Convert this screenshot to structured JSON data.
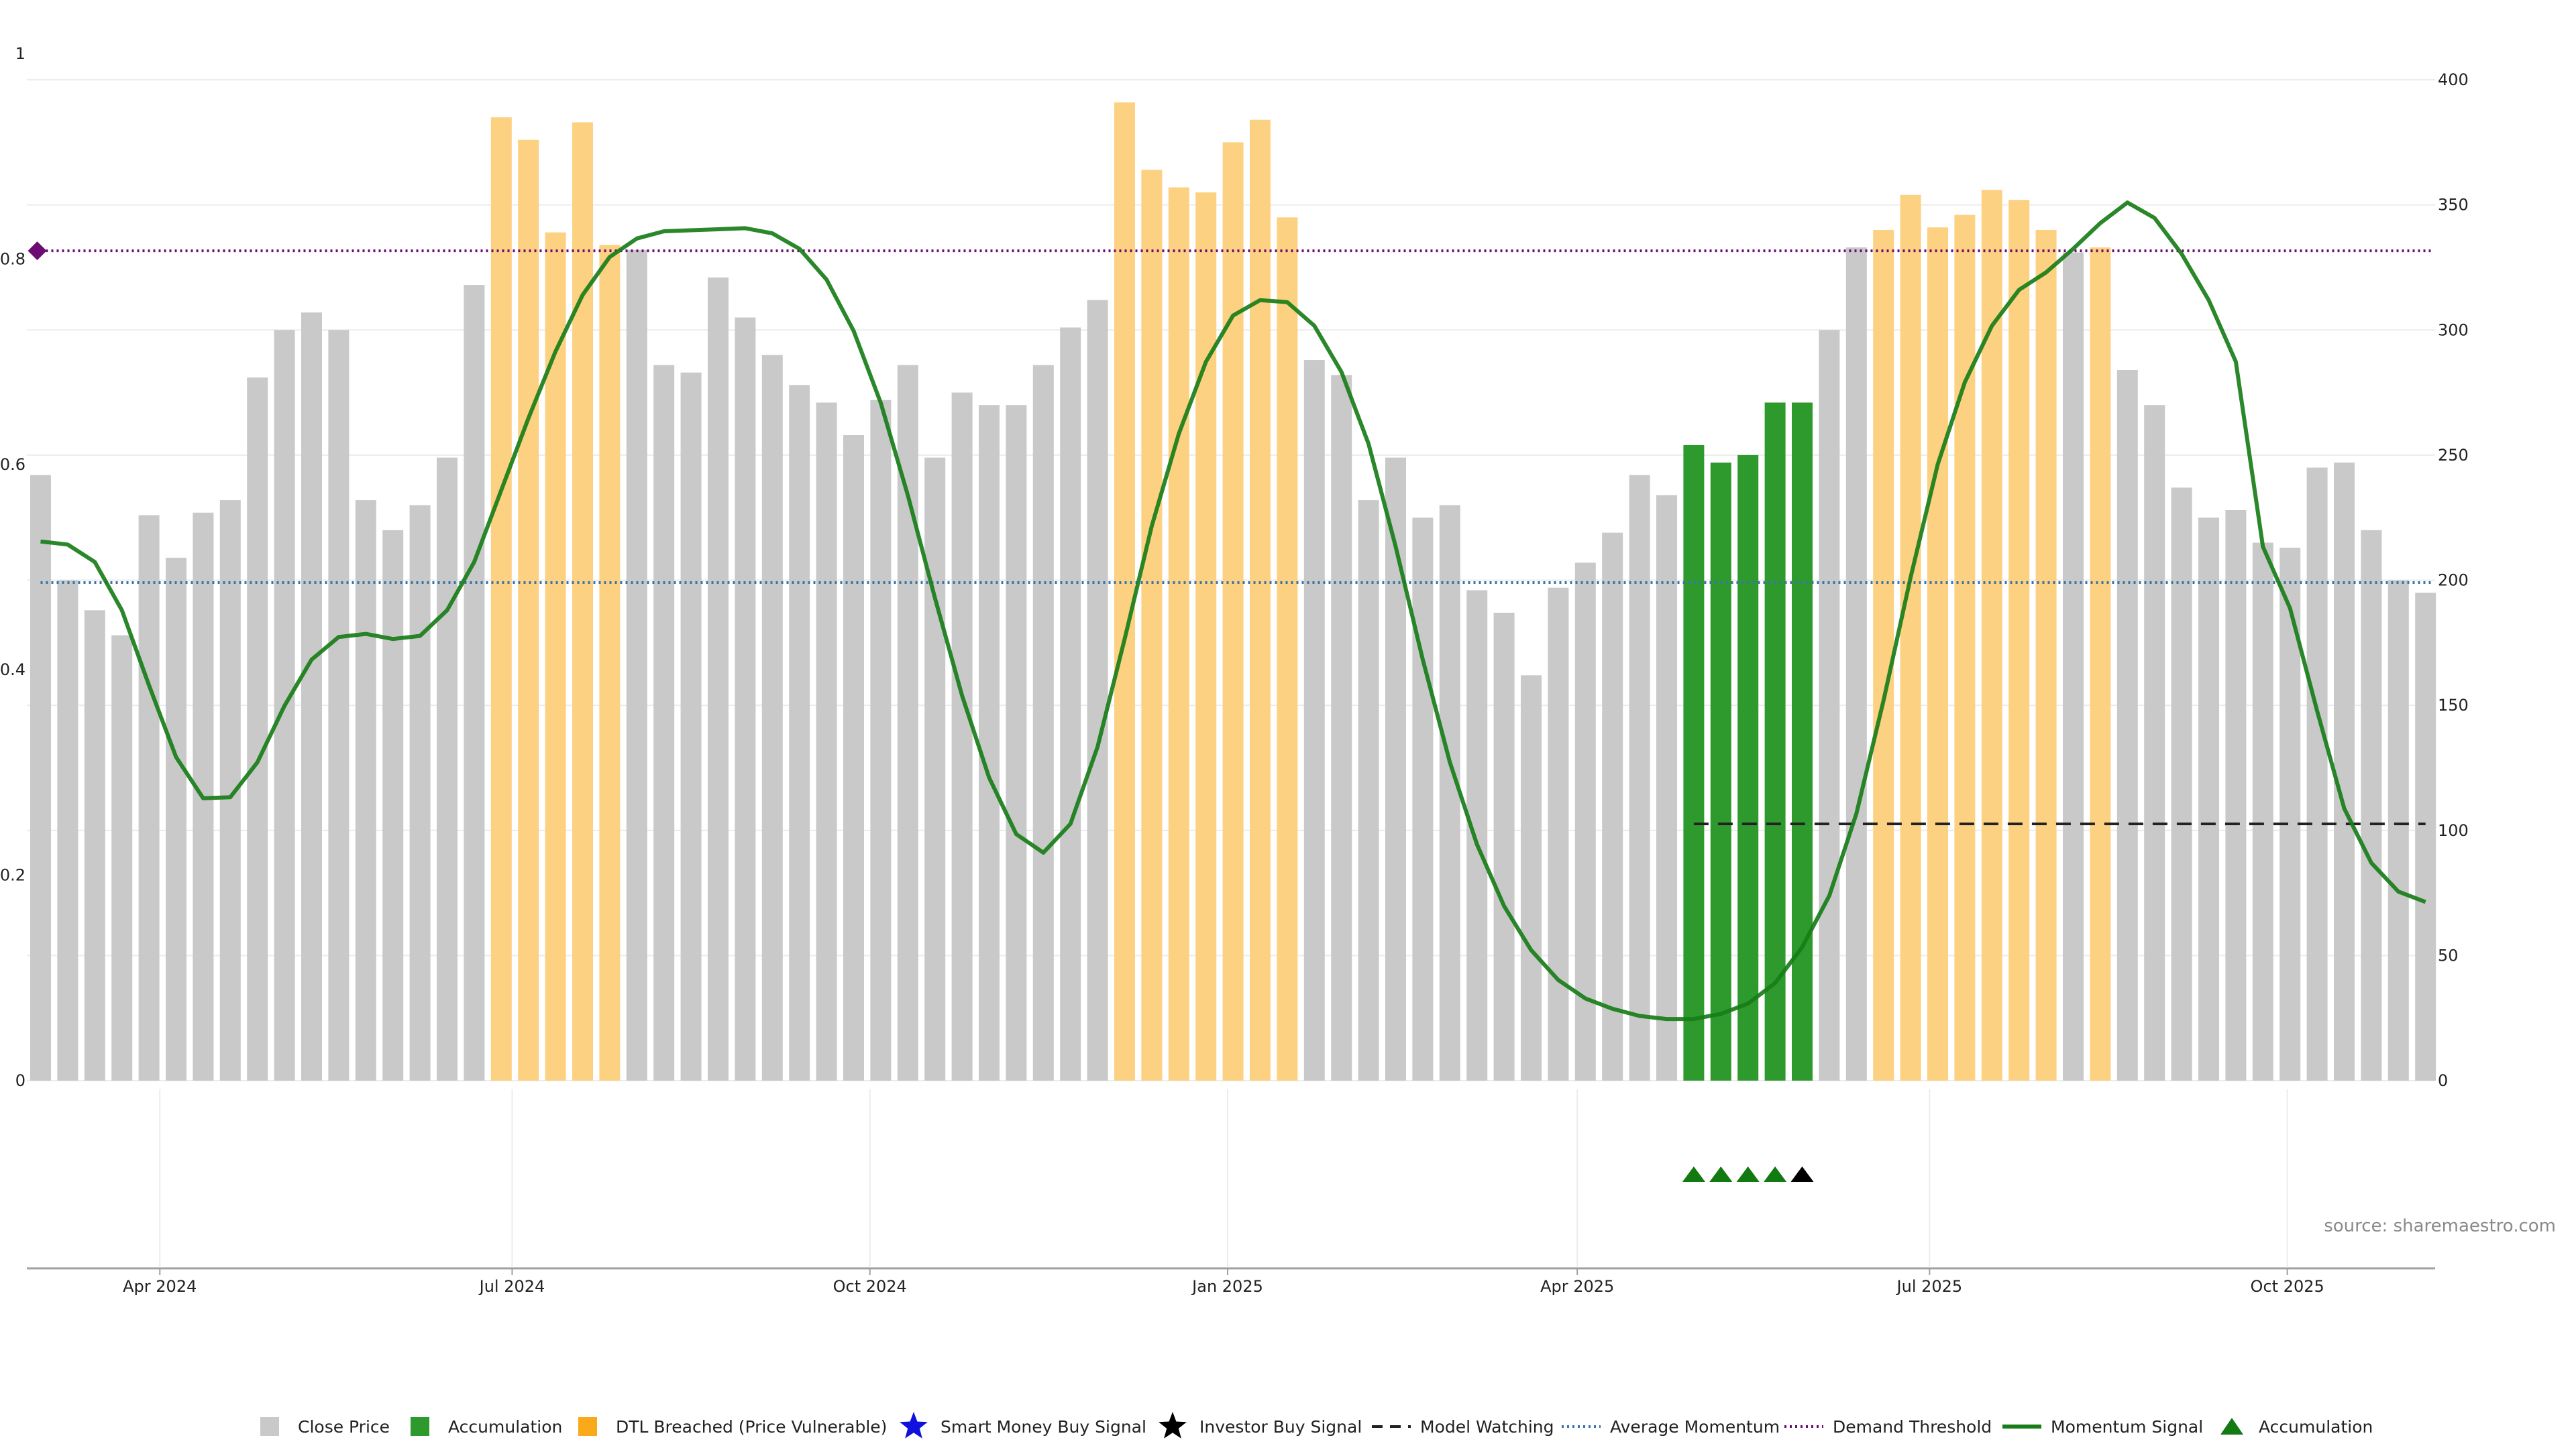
{
  "chart_data": {
    "type": "bar",
    "title": "",
    "source": "source: sharemaestro.com",
    "colors": {
      "close": "#c9c9c9",
      "accumulation": "#2e9a2e",
      "dtl": "#fdd182",
      "momentum": "#187d18",
      "avg_momentum": "#3b75a8",
      "demand": "#6d0d73",
      "model_watching": "#222222",
      "marker_green": "#117a11",
      "marker_black": "#000000"
    },
    "left_axis": {
      "ylim": [
        0,
        1
      ],
      "ticks": [
        "0",
        "0.2",
        "0.4",
        "0.6",
        "0.8",
        "1"
      ]
    },
    "right_axis": {
      "ylim": [
        0,
        400
      ],
      "ticks": [
        "0",
        "50",
        "100",
        "150",
        "200",
        "250",
        "300",
        "350",
        "400"
      ]
    },
    "x_ticks": [
      {
        "label": "Apr 2024",
        "index": 4.4
      },
      {
        "label": "Jul 2024",
        "index": 17.4
      },
      {
        "label": "Oct 2024",
        "index": 30.6
      },
      {
        "label": "Jan 2025",
        "index": 43.8
      },
      {
        "label": "Apr 2025",
        "index": 56.7
      },
      {
        "label": "Jul 2025",
        "index": 69.7
      },
      {
        "label": "Oct 2025",
        "index": 82.9
      }
    ],
    "bar_values": [
      242,
      200,
      188,
      178,
      226,
      209,
      227,
      232,
      281,
      300,
      307,
      300,
      232,
      220,
      230,
      249,
      318,
      385,
      376,
      339,
      383,
      334,
      332,
      286,
      283,
      321,
      305,
      290,
      278,
      271,
      258,
      272,
      286,
      249,
      275,
      270,
      270,
      286,
      301,
      312,
      391,
      364,
      357,
      355,
      375,
      384,
      345,
      288,
      282,
      232,
      249,
      225,
      230,
      196,
      187,
      162,
      197,
      207,
      219,
      242,
      234,
      254,
      247,
      250,
      271,
      271,
      300,
      333,
      340,
      354,
      341,
      346,
      356,
      352,
      340,
      331,
      333,
      284,
      270,
      237,
      225,
      228,
      215,
      213,
      245,
      247,
      220,
      200,
      195
    ],
    "bar_types": [
      "close",
      "close",
      "close",
      "close",
      "close",
      "close",
      "close",
      "close",
      "close",
      "close",
      "close",
      "close",
      "close",
      "close",
      "close",
      "close",
      "close",
      "dtl",
      "dtl",
      "dtl",
      "dtl",
      "dtl",
      "close",
      "close",
      "close",
      "close",
      "close",
      "close",
      "close",
      "close",
      "close",
      "close",
      "close",
      "close",
      "close",
      "close",
      "close",
      "close",
      "close",
      "close",
      "dtl",
      "dtl",
      "dtl",
      "dtl",
      "dtl",
      "dtl",
      "dtl",
      "close",
      "close",
      "close",
      "close",
      "close",
      "close",
      "close",
      "close",
      "close",
      "close",
      "close",
      "close",
      "close",
      "close",
      "accumulation",
      "accumulation",
      "accumulation",
      "accumulation",
      "accumulation",
      "close",
      "close",
      "dtl",
      "dtl",
      "dtl",
      "dtl",
      "dtl",
      "dtl",
      "dtl",
      "close",
      "dtl",
      "close",
      "close",
      "close",
      "close",
      "close",
      "close",
      "close",
      "close",
      "close",
      "close",
      "close",
      "close"
    ],
    "momentum": [
      0.525,
      0.522,
      0.505,
      0.458,
      0.385,
      0.315,
      0.275,
      0.276,
      0.31,
      0.365,
      0.41,
      0.432,
      0.435,
      0.43,
      0.433,
      0.458,
      0.505,
      0.575,
      0.645,
      0.71,
      0.765,
      0.802,
      0.82,
      0.827,
      0.828,
      0.829,
      0.83,
      0.825,
      0.81,
      0.78,
      0.73,
      0.66,
      0.57,
      0.47,
      0.375,
      0.295,
      0.24,
      0.222,
      0.25,
      0.325,
      0.43,
      0.54,
      0.63,
      0.7,
      0.745,
      0.76,
      0.758,
      0.735,
      0.69,
      0.62,
      0.52,
      0.41,
      0.31,
      0.23,
      0.17,
      0.127,
      0.098,
      0.08,
      0.07,
      0.063,
      0.06,
      0.06,
      0.065,
      0.075,
      0.095,
      0.13,
      0.18,
      0.26,
      0.37,
      0.49,
      0.6,
      0.68,
      0.735,
      0.77,
      0.787,
      0.81,
      0.835,
      0.855,
      0.84,
      0.805,
      0.76,
      0.7,
      0.52,
      0.46,
      0.36,
      0.265,
      0.212,
      0.184,
      0.174
    ],
    "average_momentum": 0.485,
    "demand_threshold": 0.808,
    "model_watching": {
      "value": 0.25,
      "from_index": 61,
      "to_index": 88
    },
    "demand_marker_index": 0,
    "markers": [
      {
        "index": 61,
        "type": "accumulation"
      },
      {
        "index": 62,
        "type": "accumulation"
      },
      {
        "index": 63,
        "type": "accumulation"
      },
      {
        "index": 64,
        "type": "accumulation"
      },
      {
        "index": 65,
        "type": "investor"
      }
    ],
    "legend": [
      {
        "label": "Close Price",
        "symbol": "square-gray"
      },
      {
        "label": "Accumulation",
        "symbol": "square-green"
      },
      {
        "label": "DTL Breached (Price Vulnerable)",
        "symbol": "square-orange"
      },
      {
        "label": "Smart Money Buy Signal",
        "symbol": "star-blue"
      },
      {
        "label": "Investor Buy Signal",
        "symbol": "star-black"
      },
      {
        "label": "Model Watching",
        "symbol": "dash-black"
      },
      {
        "label": "Average Momentum",
        "symbol": "dot-blue"
      },
      {
        "label": "Demand Threshold",
        "symbol": "dot-purple"
      },
      {
        "label": "Momentum Signal",
        "symbol": "line-green"
      },
      {
        "label": "Accumulation",
        "symbol": "triangle-green"
      }
    ]
  }
}
